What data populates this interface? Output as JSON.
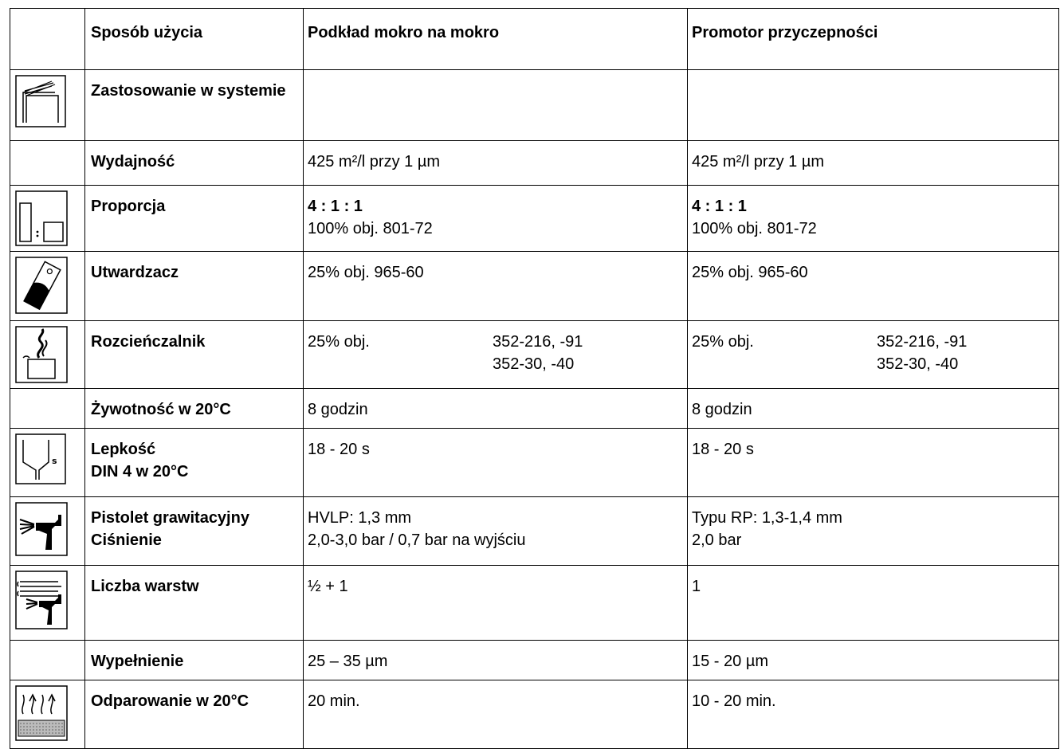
{
  "header": {
    "col1": "Sposób użycia",
    "col2": "Podkład mokro na mokro",
    "col3": "Promotor przyczepności"
  },
  "rows": {
    "system": {
      "label": "Zastosowanie w systemie",
      "icon": "system-layers-icon"
    },
    "yield": {
      "label": "Wydajność",
      "v1": "425 m²/l przy 1 µm",
      "v2": "425 m²/l przy 1 µm"
    },
    "ratio": {
      "label": "Proporcja",
      "icon": "mixing-ratio-icon",
      "v1_bold": "4 : 1 : 1",
      "v1": "100% obj. 801-72",
      "v2_bold": "4 : 1 : 1",
      "v2": "100% obj. 801-72"
    },
    "hardener": {
      "label": "Utwardzacz",
      "icon": "hardener-can-icon",
      "v1": "25% obj. 965-60",
      "v2": "25% obj. 965-60"
    },
    "thinner": {
      "label": "Rozcieńczalnik",
      "icon": "thinner-icon",
      "v1a": "25% obj.",
      "v1b_1": "352-216, -91",
      "v1b_2": "352-30, -40",
      "v2a": "25% obj.",
      "v2b_1": "352-216, -91",
      "v2b_2": "352-30, -40"
    },
    "potlife": {
      "label": "Żywotność w 20°C",
      "v1": "8 godzin",
      "v2": "8 godzin"
    },
    "viscosity": {
      "label_1": "Lepkość",
      "label_2": "DIN 4 w 20°C",
      "icon": "viscosity-cup-icon",
      "v1": "18 - 20 s",
      "v2": "18 - 20 s"
    },
    "gun": {
      "label_1": "Pistolet grawitacyjny",
      "label_2": "Ciśnienie",
      "icon": "spray-gun-icon",
      "v1_1": "HVLP: 1,3 mm",
      "v1_2": "2,0-3,0 bar / 0,7 bar na wyjściu",
      "v2_1": "Typu RP: 1,3-1,4 mm",
      "v2_2": "2,0 bar"
    },
    "coats": {
      "label": "Liczba warstw",
      "icon": "spray-coats-icon",
      "v1": "½ + 1",
      "v2": "1"
    },
    "film": {
      "label": "Wypełnienie",
      "v1": "25 – 35 µm",
      "v2": "15 - 20 µm"
    },
    "flash": {
      "label": "Odparowanie w 20°C",
      "icon": "flash-off-icon",
      "v1": "20 min.",
      "v2": "10 - 20 min."
    }
  }
}
